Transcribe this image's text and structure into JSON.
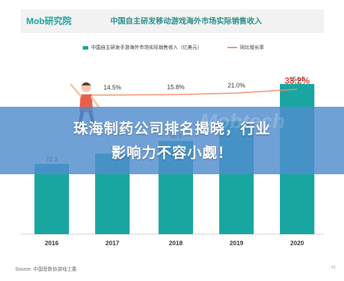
{
  "header": {
    "logo_text": "Mob研究院",
    "title": "中国自主研发移动游戏海外市场实际销售收入"
  },
  "legend": {
    "bar_label": "中国自主研发手游海外市场实际销售收入（亿美元）",
    "line_label": "同比增长率"
  },
  "colors": {
    "bar": "#1aa6a0",
    "line": "#f08a6a",
    "highlight": "#e0463a",
    "banner": "#508ccd"
  },
  "banner": {
    "line1": "珠海制药公司排名揭晓，行业",
    "line2": "影响力不容小觑！"
  },
  "watermark": "Mobtech",
  "source": "Source:   中国音数协游戏工委",
  "page_number": "43",
  "chart_data": {
    "type": "bar",
    "categories": [
      "2016",
      "2017",
      "2018",
      "2019",
      "2020"
    ],
    "series": [
      {
        "name": "中国自主研发手游海外市场实际销售收入（亿美元）",
        "type": "bar",
        "values": [
          72.3,
          82.8,
          95.9,
          115.9,
          154.5
        ],
        "labels": [
          "72.3",
          "",
          "95.9",
          "",
          "154.5"
        ]
      },
      {
        "name": "同比增长率",
        "type": "line",
        "values": [
          null,
          14.5,
          15.8,
          21.0,
          33.2
        ],
        "labels": [
          "",
          "14.5%",
          "15.8%",
          "21.0%",
          "33.2%"
        ]
      }
    ],
    "ylim": [
      0,
      170
    ],
    "rate_lim": [
      0,
      100
    ]
  }
}
